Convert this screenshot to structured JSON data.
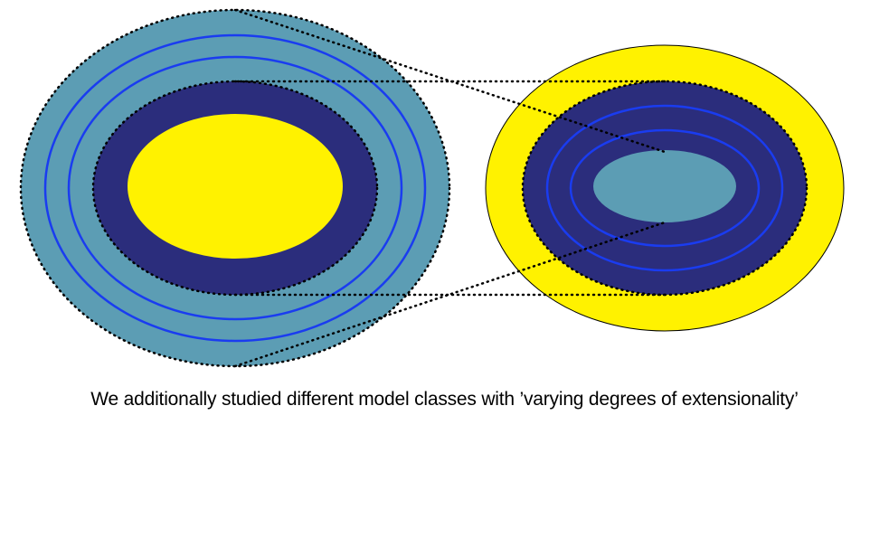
{
  "caption": "We additionally studied different model classes with ’varying degrees of extensionality’",
  "colors": {
    "teal": "#5c9db4",
    "navy": "#2b2d7c",
    "yellow": "#fff200",
    "ring_line": "#1a3cf0",
    "dots": "#000000",
    "background": "#ffffff"
  }
}
